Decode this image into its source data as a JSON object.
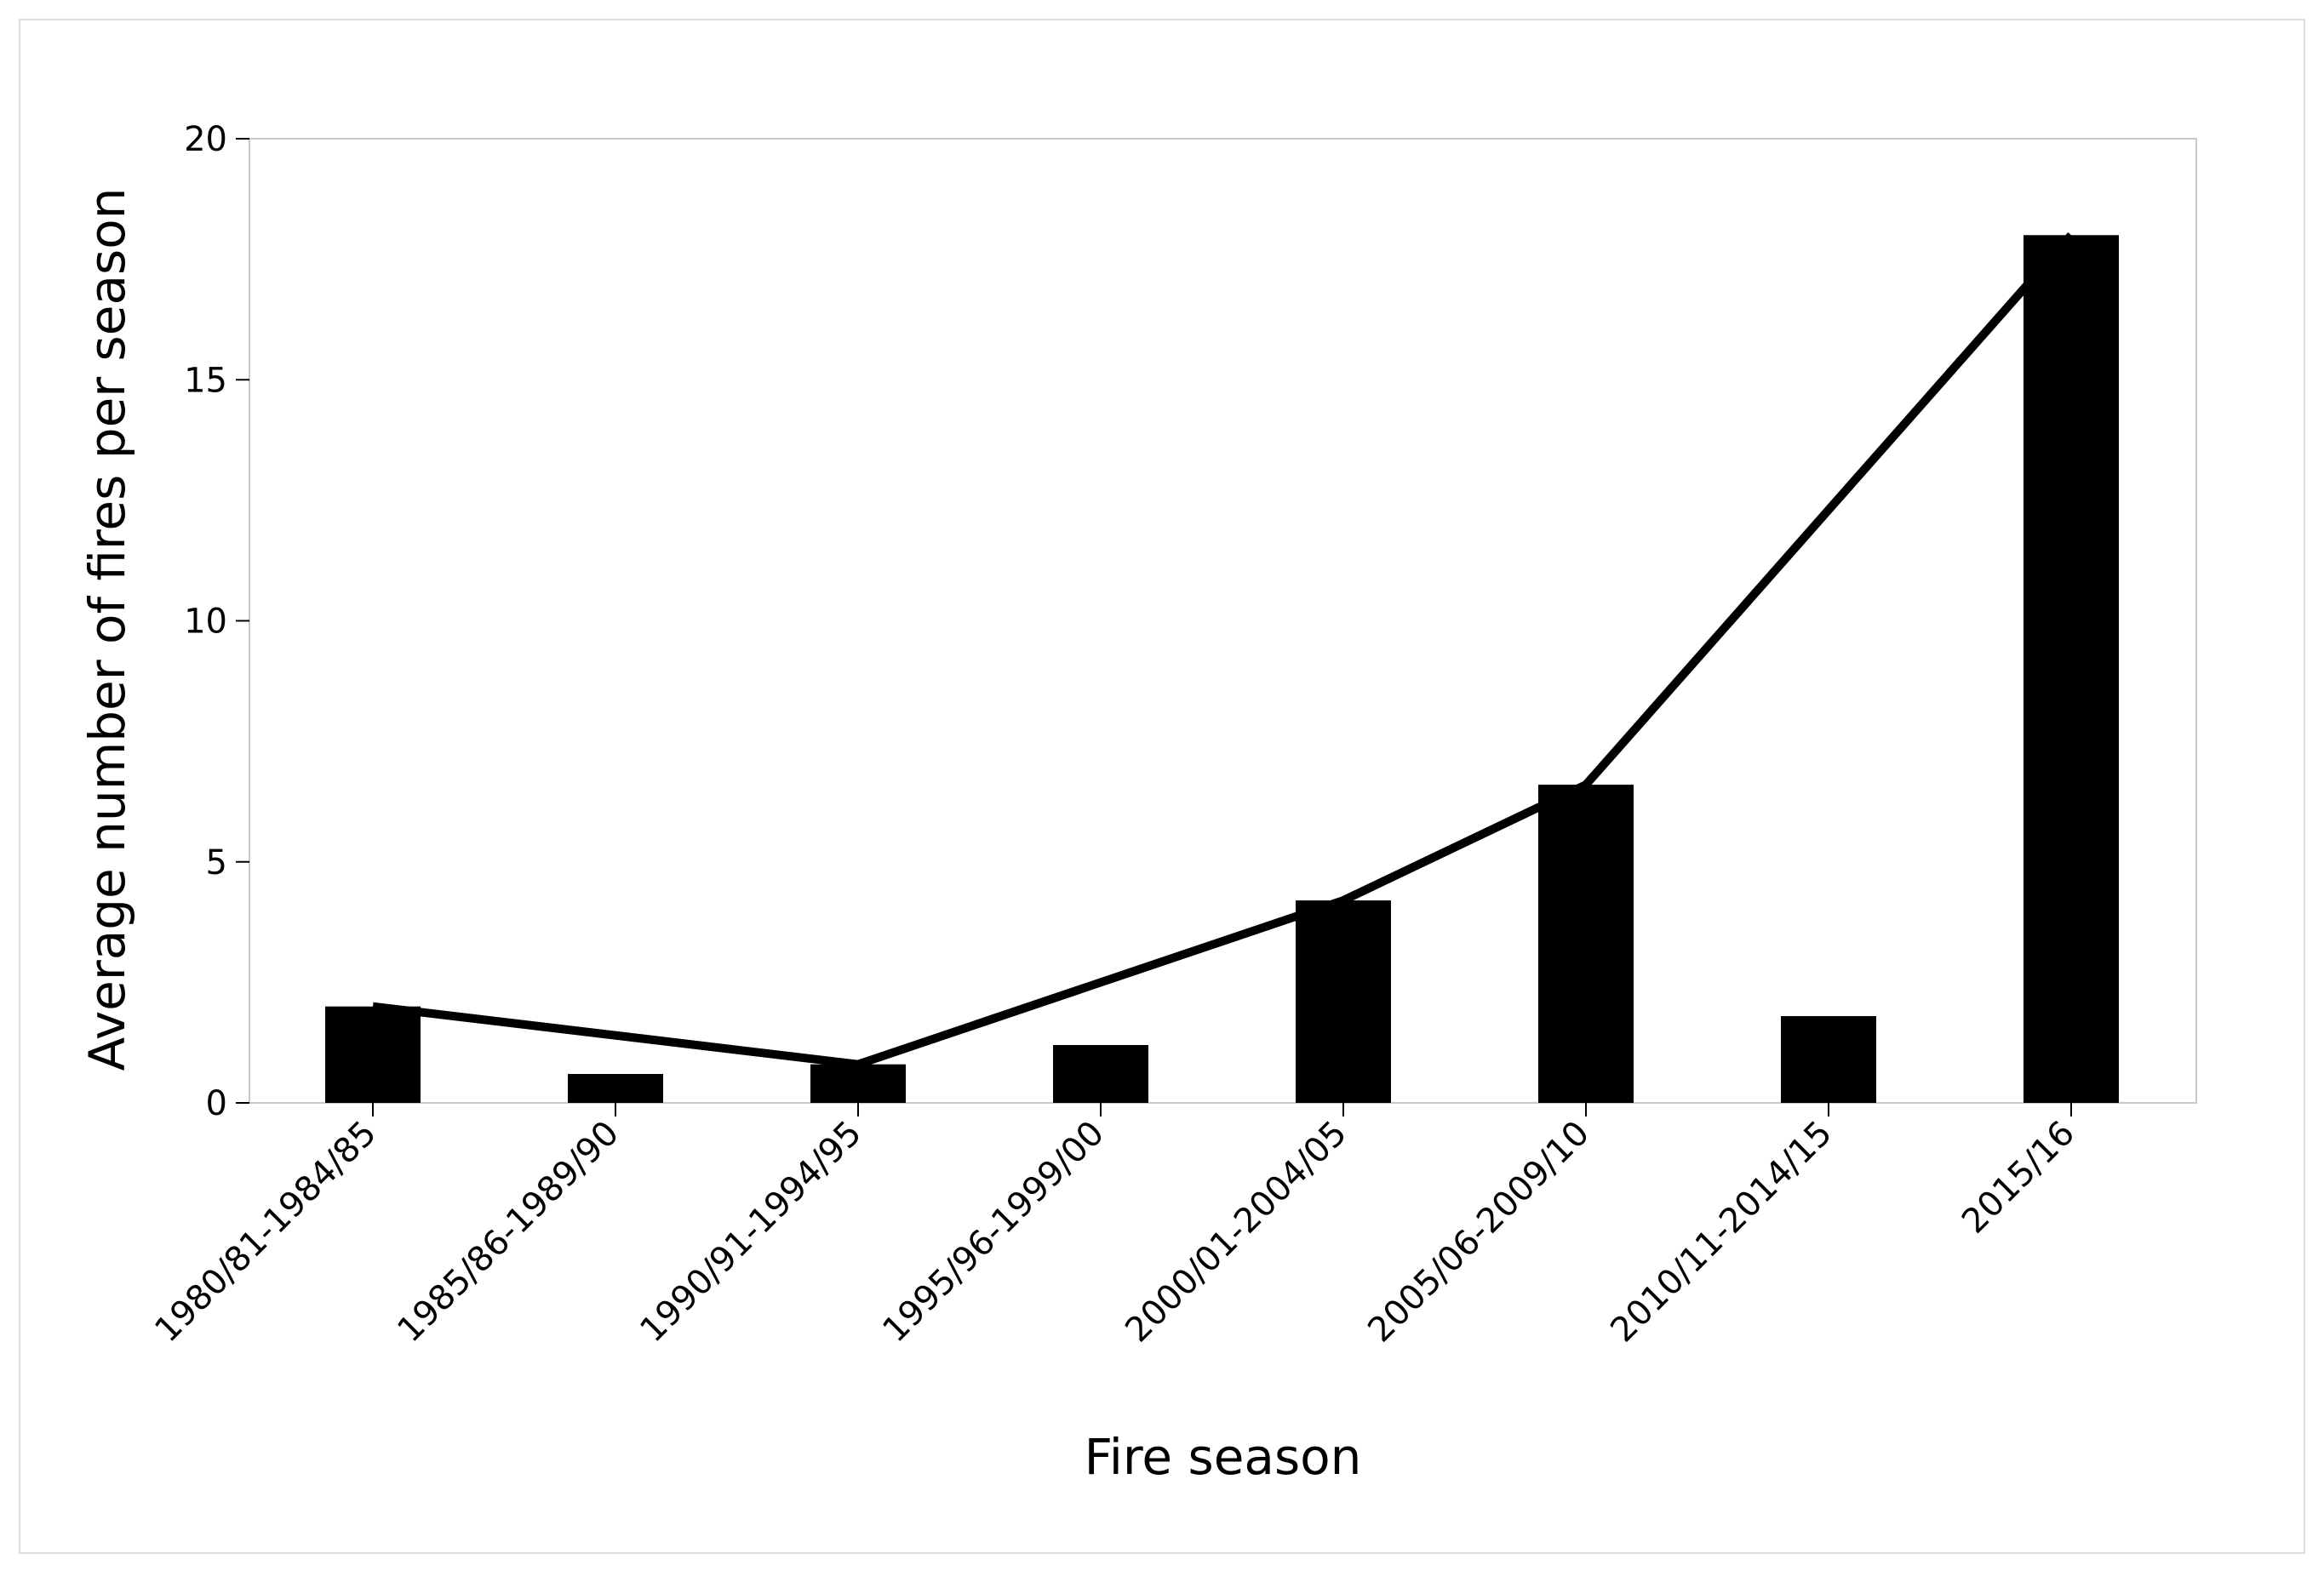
{
  "chart_data": {
    "type": "bar",
    "title": "",
    "xlabel": "Fire season",
    "ylabel": "Average number of fires per season",
    "categories": [
      "1980/81-1984/85",
      "1985/86-1989/90",
      "1990/91-1994/95",
      "1995/96-1999/00",
      "2000/01-2004/05",
      "2005/06-2009/10",
      "2010/11-2014/15",
      "2015/16"
    ],
    "values": [
      2.0,
      0.6,
      0.8,
      1.2,
      4.2,
      6.6,
      1.8,
      18.0
    ],
    "line": {
      "category_index": [
        0,
        2,
        4,
        5,
        7
      ],
      "values": [
        2.0,
        0.8,
        4.2,
        6.6,
        18.0
      ]
    },
    "ylim": [
      0,
      20
    ],
    "yticks": [
      0,
      5,
      10,
      15,
      20
    ],
    "colors": {
      "bar": "#000000",
      "line": "#000000",
      "frame": "#c8c8c8"
    },
    "grid": false,
    "legend": "none"
  }
}
